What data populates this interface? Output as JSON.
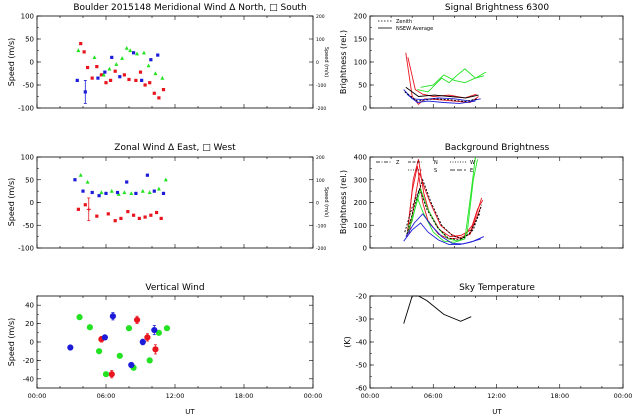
{
  "colors": {
    "red": "#e8141e",
    "green": "#22e222",
    "blue": "#1c1cd8",
    "black": "#000000"
  },
  "chart_data": [
    {
      "type": "scatter",
      "id": "meridional",
      "title": "Boulder   2015148     Meridional Wind   Δ North, □ South",
      "xlabel": "",
      "ylabel": "Speed (m/s)",
      "y2label": "Speed (m/s)",
      "xlim": [
        0,
        24
      ],
      "ylim": [
        -100,
        100
      ],
      "y2lim": [
        -200,
        200
      ],
      "x_ticks": [],
      "y_ticks": [
        -100,
        -50,
        0,
        50,
        100
      ],
      "y2_ticks": [
        -200,
        -100,
        0,
        100,
        200
      ],
      "series": [
        {
          "color": "red",
          "marker": "square",
          "x": [
            3.8,
            4.1,
            4.4,
            4.8,
            5.2,
            5.6,
            6.0,
            6.4,
            6.8,
            7.6,
            8.0,
            8.6,
            9.0,
            9.4,
            9.8,
            10.2,
            10.6,
            11.0
          ],
          "y": [
            40,
            22,
            -12,
            -35,
            -10,
            -28,
            -45,
            -40,
            -20,
            -28,
            -38,
            -40,
            -22,
            -50,
            -45,
            -68,
            -78,
            -60
          ]
        },
        {
          "color": "green",
          "marker": "triangle",
          "x": [
            3.6,
            5.0,
            5.8,
            6.3,
            6.9,
            7.4,
            7.8,
            8.1,
            8.7,
            9.3,
            9.7,
            10.3,
            10.9
          ],
          "y": [
            25,
            10,
            -28,
            -15,
            -5,
            8,
            30,
            25,
            18,
            20,
            -8,
            -25,
            -35
          ]
        },
        {
          "color": "blue",
          "marker": "square",
          "x": [
            3.5,
            4.2,
            5.3,
            5.9,
            6.5,
            7.2,
            8.4,
            9.1,
            9.9,
            10.5
          ],
          "y": [
            -40,
            -65,
            -35,
            -22,
            10,
            -32,
            20,
            -40,
            5,
            15
          ],
          "err": [
            0,
            25,
            0,
            0,
            0,
            0,
            0,
            0,
            0,
            0
          ]
        }
      ]
    },
    {
      "type": "line",
      "id": "signal",
      "title": "Signal Brightness          6300",
      "ylabel": "Brightness (rel.)",
      "xlim": [
        0,
        24
      ],
      "ylim": [
        0,
        200
      ],
      "y_ticks": [
        0,
        50,
        100,
        150,
        200
      ],
      "x_ticks": [],
      "legend": [
        "Zenith",
        "NSEW Average"
      ],
      "series": [
        {
          "color": "red",
          "x": [
            3.4,
            4.0,
            4.6,
            5.2,
            6.5,
            8.0,
            9.5,
            10.3
          ],
          "y": [
            120,
            25,
            8,
            20,
            18,
            15,
            12,
            25
          ]
        },
        {
          "color": "red",
          "x": [
            3.6,
            4.3,
            5.0,
            6.0,
            7.5,
            9.0,
            10.1
          ],
          "y": [
            110,
            40,
            30,
            25,
            28,
            22,
            30
          ]
        },
        {
          "color": "green",
          "x": [
            4.5,
            5.5,
            6.8,
            7.5,
            8.2,
            9.0,
            10.0,
            11.0
          ],
          "y": [
            40,
            35,
            65,
            55,
            70,
            85,
            65,
            78
          ]
        },
        {
          "color": "green",
          "x": [
            4.8,
            6.0,
            7.0,
            8.0,
            9.0,
            10.0,
            10.8
          ],
          "y": [
            45,
            50,
            72,
            60,
            55,
            65,
            70
          ]
        },
        {
          "color": "blue",
          "x": [
            3.2,
            4.0,
            5.0,
            6.5,
            8.0,
            9.5,
            10.5
          ],
          "y": [
            40,
            20,
            18,
            22,
            20,
            15,
            20
          ]
        },
        {
          "color": "blue",
          "x": [
            3.5,
            4.5,
            5.5,
            7.0,
            8.5,
            10.0
          ],
          "y": [
            30,
            12,
            15,
            12,
            10,
            15
          ]
        },
        {
          "color": "black",
          "dash": true,
          "x": [
            3.3,
            4.5,
            6.0,
            7.5,
            9.0,
            10.2
          ],
          "y": [
            35,
            15,
            20,
            18,
            14,
            20
          ]
        },
        {
          "color": "black",
          "x": [
            3.4,
            4.6,
            6.1,
            7.6,
            9.1,
            10.3
          ],
          "y": [
            45,
            25,
            28,
            25,
            22,
            28
          ]
        }
      ]
    },
    {
      "type": "scatter",
      "id": "zonal",
      "title": "Zonal Wind      Δ East, □ West",
      "ylabel": "Speed (m/s)",
      "y2label": "Speed (m/s)",
      "xlim": [
        0,
        24
      ],
      "ylim": [
        -100,
        100
      ],
      "y2lim": [
        -200,
        200
      ],
      "x_ticks": [],
      "y_ticks": [
        -100,
        -50,
        0,
        50,
        100
      ],
      "y2_ticks": [
        -200,
        -100,
        0,
        100,
        200
      ],
      "series": [
        {
          "color": "red",
          "marker": "square",
          "x": [
            3.6,
            4.2,
            5.2,
            6.2,
            6.8,
            7.3,
            7.9,
            8.4,
            8.9,
            9.4,
            9.9,
            10.4,
            10.8
          ],
          "y": [
            -15,
            -5,
            -30,
            -25,
            -40,
            -35,
            -20,
            -28,
            -35,
            -32,
            -28,
            -22,
            -35
          ],
          "err": [
            0,
            0,
            0,
            0,
            0,
            0,
            0,
            0,
            0,
            0,
            0,
            0,
            0
          ]
        },
        {
          "color": "red",
          "marker": "cross",
          "x": [
            4.5
          ],
          "y": [
            -15
          ],
          "err": [
            25
          ]
        },
        {
          "color": "green",
          "marker": "triangle",
          "x": [
            3.8,
            4.4,
            5.6,
            6.5,
            7.1,
            7.6,
            8.2,
            9.2,
            9.8,
            10.6,
            11.2
          ],
          "y": [
            60,
            45,
            22,
            25,
            18,
            22,
            20,
            25,
            22,
            30,
            50
          ]
        },
        {
          "color": "blue",
          "marker": "square",
          "x": [
            3.3,
            4.0,
            4.8,
            5.4,
            6.0,
            7.0,
            7.8,
            8.6,
            9.6,
            10.2,
            11.0
          ],
          "y": [
            50,
            25,
            22,
            15,
            20,
            22,
            45,
            20,
            60,
            25,
            20
          ]
        }
      ]
    },
    {
      "type": "line",
      "id": "background",
      "title": "Background Brightness",
      "ylabel": "Brightness (rel.)",
      "xlim": [
        0,
        24
      ],
      "ylim": [
        0,
        400
      ],
      "y_ticks": [
        0,
        100,
        200,
        300,
        400
      ],
      "x_ticks": [],
      "legend": [
        "Z",
        "N",
        "S",
        "W",
        "E"
      ],
      "series": [
        {
          "color": "red",
          "x": [
            3.5,
            4.0,
            4.5,
            5.0,
            5.5,
            6.5,
            7.5,
            8.5,
            9.5,
            10.0,
            10.5
          ],
          "y": [
            50,
            250,
            360,
            200,
            120,
            60,
            40,
            45,
            60,
            120,
            180
          ]
        },
        {
          "color": "red",
          "x": [
            3.6,
            4.1,
            4.6,
            5.1,
            5.6,
            6.6,
            7.6,
            8.6,
            9.6,
            10.1,
            10.6
          ],
          "y": [
            80,
            300,
            390,
            240,
            160,
            80,
            50,
            55,
            80,
            150,
            220
          ]
        },
        {
          "color": "red",
          "x": [
            3.7,
            4.2,
            4.7,
            5.2,
            5.7,
            6.7,
            7.7,
            8.7,
            9.7,
            10.2,
            10.7
          ],
          "y": [
            60,
            200,
            330,
            260,
            200,
            100,
            60,
            40,
            100,
            170,
            210
          ]
        },
        {
          "color": "green",
          "x": [
            3.5,
            4.0,
            4.5,
            5.0,
            6.0,
            7.0,
            8.0,
            9.0,
            9.6,
            10.0
          ],
          "y": [
            60,
            120,
            220,
            160,
            70,
            30,
            25,
            40,
            250,
            400
          ]
        },
        {
          "color": "green",
          "x": [
            3.6,
            4.2,
            4.8,
            5.4,
            6.4,
            7.4,
            8.4,
            9.2,
            9.8,
            10.2
          ],
          "y": [
            90,
            160,
            260,
            180,
            90,
            40,
            30,
            60,
            300,
            390
          ]
        },
        {
          "color": "blue",
          "x": [
            3.2,
            4.0,
            4.8,
            5.5,
            6.5,
            7.5,
            8.5,
            9.5,
            10.5
          ],
          "y": [
            30,
            80,
            110,
            70,
            35,
            15,
            15,
            25,
            40
          ]
        },
        {
          "color": "blue",
          "x": [
            3.4,
            4.2,
            5.0,
            5.8,
            6.8,
            7.8,
            8.8,
            9.8,
            10.8
          ],
          "y": [
            50,
            110,
            150,
            100,
            50,
            20,
            18,
            30,
            50
          ]
        },
        {
          "color": "black",
          "dash": true,
          "x": [
            3.3,
            4.0,
            4.7,
            5.4,
            6.4,
            7.4,
            8.4,
            9.4,
            10.4
          ],
          "y": [
            70,
            180,
            260,
            170,
            90,
            45,
            35,
            60,
            150
          ]
        },
        {
          "color": "black",
          "dash": true,
          "x": [
            3.5,
            4.3,
            5.0,
            5.8,
            6.8,
            7.8,
            8.8,
            9.8,
            10.6
          ],
          "y": [
            60,
            200,
            300,
            200,
            100,
            55,
            40,
            80,
            190
          ]
        }
      ]
    },
    {
      "type": "scatter",
      "id": "vertical",
      "title": "Vertical Wind",
      "ylabel": "Speed (m/s)",
      "xlabel": "UT",
      "xlim": [
        0,
        24
      ],
      "ylim": [
        -50,
        50
      ],
      "x_ticks": [
        "00:00",
        "06:00",
        "12:00",
        "18:00",
        "00:00"
      ],
      "y_ticks": [
        -40,
        -20,
        0,
        20,
        40
      ],
      "series": [
        {
          "color": "red",
          "marker": "dot",
          "x": [
            5.6,
            6.5,
            8.7,
            9.6,
            10.3
          ],
          "y": [
            3,
            -35,
            24,
            5,
            -8
          ],
          "err": [
            3,
            4,
            4,
            4,
            5
          ]
        },
        {
          "color": "green",
          "marker": "dot",
          "x": [
            3.7,
            4.6,
            5.4,
            6.0,
            7.2,
            8.0,
            8.4,
            9.8,
            10.6,
            11.3
          ],
          "y": [
            27,
            16,
            -10,
            -35,
            -15,
            15,
            -28,
            -20,
            10,
            15
          ]
        },
        {
          "color": "blue",
          "marker": "dot",
          "x": [
            2.9,
            5.9,
            6.6,
            8.2,
            9.2,
            10.2
          ],
          "y": [
            -6,
            5,
            28,
            -25,
            0,
            13
          ],
          "err": [
            0,
            0,
            4,
            0,
            3,
            5
          ]
        }
      ]
    },
    {
      "type": "line",
      "id": "sky",
      "title": "Sky Temperature",
      "ylabel": "(K)",
      "xlabel": "UT",
      "xlim": [
        0,
        24
      ],
      "ylim": [
        -60,
        -20
      ],
      "x_ticks": [
        "00:00",
        "06:00",
        "12:00",
        "18:00",
        "00:00"
      ],
      "y_ticks": [
        -60,
        -50,
        -40,
        -30,
        -20
      ],
      "series": [
        {
          "color": "black",
          "x": [
            3.2,
            4.0,
            4.6,
            5.4,
            7.0,
            8.6,
            9.6
          ],
          "y": [
            -32,
            -20,
            -16,
            -22,
            -28,
            -31,
            -29
          ]
        }
      ]
    }
  ]
}
